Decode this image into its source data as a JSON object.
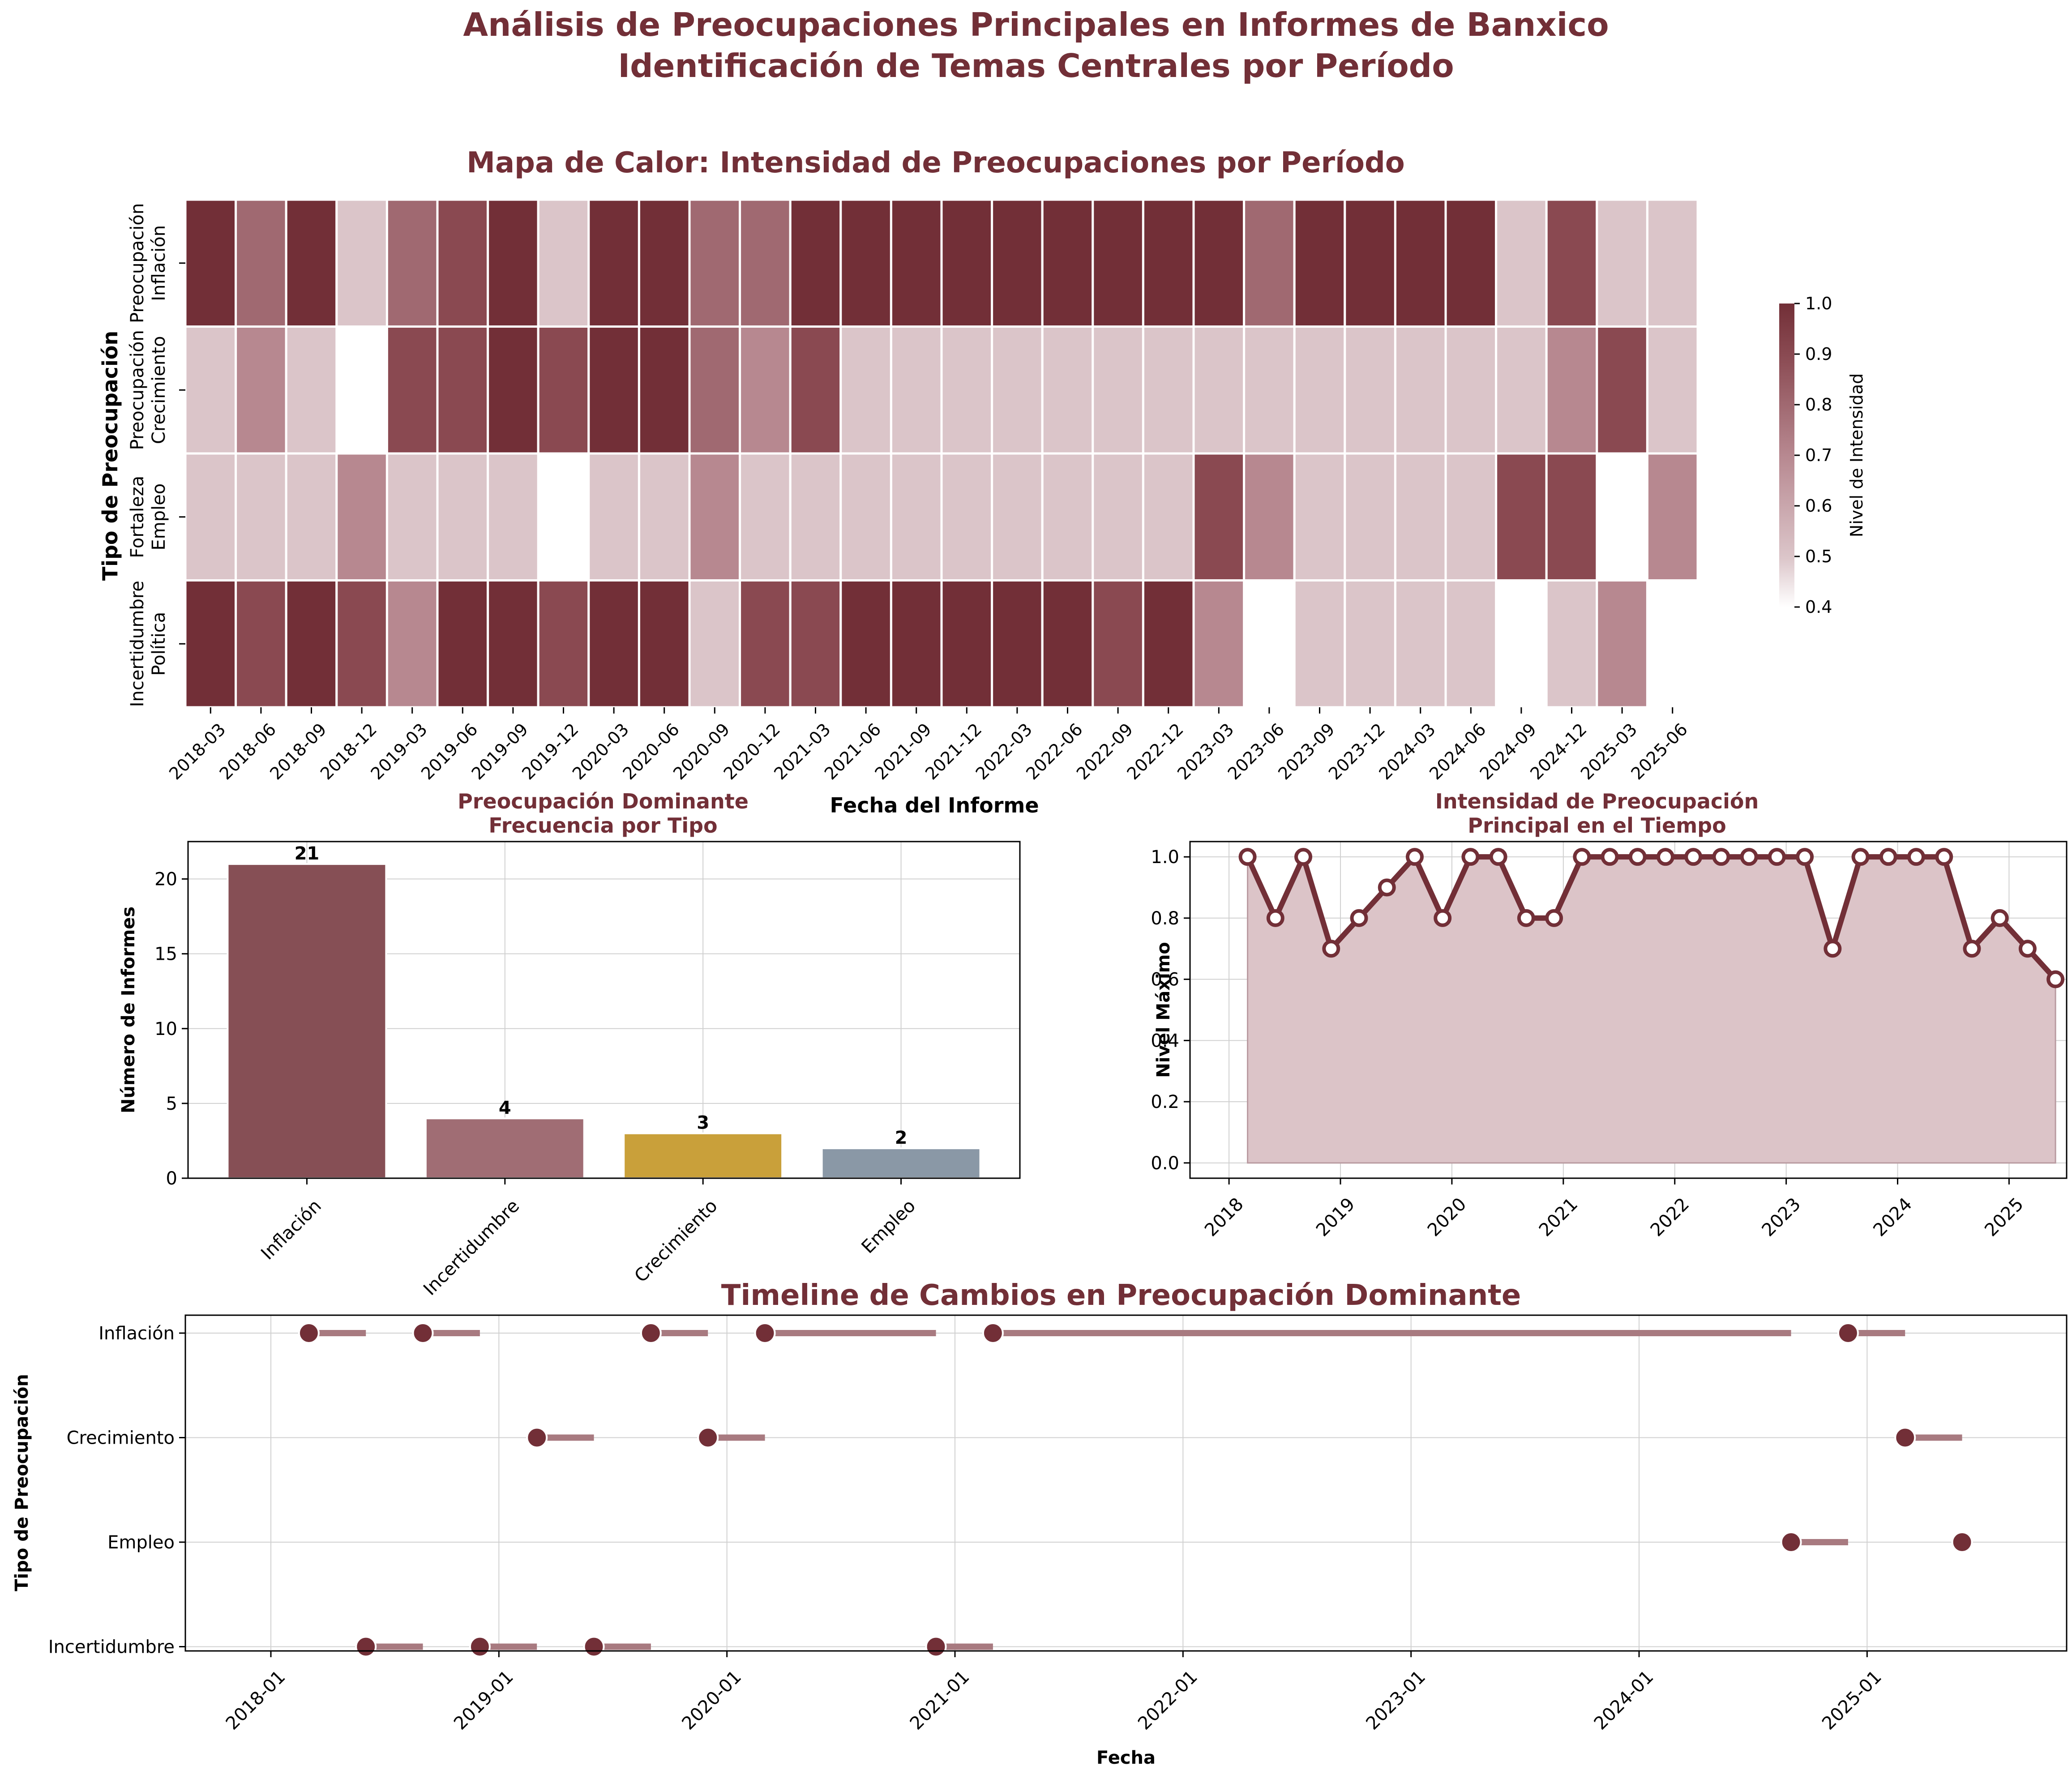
{
  "suptitle": [
    "Análisis de Preocupaciones Principales en Informes de Banxico",
    "Identificación de Temas Centrales por Período"
  ],
  "colors": {
    "accent": "#722f37",
    "accent_light": "#d9c2c6",
    "bar_inflacion": "#864f55",
    "bar_incertidumbre": "#a06d74",
    "bar_crecimiento": "#c9a03a",
    "bar_empleo": "#8a98a6",
    "timeline_bar": "#a87a80",
    "area_fill": "#dcc4c8",
    "grid": "#d0d0d0"
  },
  "chart_data": [
    {
      "type": "heatmap",
      "title": "Mapa de Calor: Intensidad de Preocupaciones por Período",
      "xlabel": "Fecha del Informe",
      "ylabel": "Tipo de Preocupación",
      "rows": [
        [
          "Preocupación",
          "Inflación"
        ],
        [
          "Preocupación",
          "Crecimiento"
        ],
        [
          "Fortaleza",
          "Empleo"
        ],
        [
          "Incertidumbre",
          "Política"
        ]
      ],
      "columns": [
        "2018-03",
        "2018-06",
        "2018-09",
        "2018-12",
        "2019-03",
        "2019-06",
        "2019-09",
        "2019-12",
        "2020-03",
        "2020-06",
        "2020-09",
        "2020-12",
        "2021-03",
        "2021-06",
        "2021-09",
        "2021-12",
        "2022-03",
        "2022-06",
        "2022-09",
        "2022-12",
        "2023-03",
        "2023-06",
        "2023-09",
        "2023-12",
        "2024-03",
        "2024-06",
        "2024-09",
        "2024-12",
        "2025-03",
        "2025-06"
      ],
      "values": [
        [
          1.0,
          0.8,
          1.0,
          0.5,
          0.8,
          0.9,
          1.0,
          0.5,
          1.0,
          1.0,
          0.8,
          0.8,
          1.0,
          1.0,
          1.0,
          1.0,
          1.0,
          1.0,
          1.0,
          1.0,
          1.0,
          0.8,
          1.0,
          1.0,
          1.0,
          1.0,
          0.5,
          0.9,
          0.5,
          0.5
        ],
        [
          0.5,
          0.7,
          0.5,
          null,
          0.9,
          0.9,
          1.0,
          0.9,
          1.0,
          1.0,
          0.8,
          0.7,
          0.9,
          0.5,
          0.5,
          0.5,
          0.5,
          0.5,
          0.5,
          0.5,
          0.5,
          0.5,
          0.5,
          0.5,
          0.5,
          0.5,
          0.5,
          0.7,
          0.9,
          0.5
        ],
        [
          0.5,
          0.5,
          0.5,
          0.7,
          0.5,
          0.5,
          0.5,
          null,
          0.5,
          0.5,
          0.7,
          0.5,
          0.5,
          0.5,
          0.5,
          0.5,
          0.5,
          0.5,
          0.5,
          0.5,
          0.9,
          0.7,
          0.5,
          0.5,
          0.5,
          0.5,
          0.9,
          0.9,
          null,
          0.7
        ],
        [
          1.0,
          0.9,
          1.0,
          0.9,
          0.7,
          1.0,
          1.0,
          0.9,
          1.0,
          1.0,
          0.5,
          0.9,
          0.9,
          1.0,
          1.0,
          1.0,
          1.0,
          1.0,
          0.9,
          1.0,
          0.7,
          null,
          0.5,
          0.5,
          0.5,
          0.5,
          null,
          0.5,
          0.7,
          null
        ]
      ],
      "colorbar": {
        "label": "Nivel de Intensidad",
        "range": [
          0.4,
          1.0
        ],
        "ticks": [
          "0.4",
          "0.5",
          "0.6",
          "0.7",
          "0.8",
          "0.9",
          "1.0"
        ]
      }
    },
    {
      "type": "bar",
      "title": [
        "Preocupación Dominante",
        "Frecuencia por Tipo"
      ],
      "categories": [
        "Inflación",
        "Incertidumbre",
        "Crecimiento",
        "Empleo"
      ],
      "values": [
        21,
        4,
        3,
        2
      ],
      "ylabel": "Número de Informes",
      "ylim": [
        0,
        22.5
      ],
      "yticks": [
        0,
        5,
        10,
        15,
        20
      ],
      "grid": true
    },
    {
      "type": "area",
      "title": [
        "Intensidad de Preocupación",
        "Principal en el Tiempo"
      ],
      "ylabel": "Nivel Máximo",
      "x": [
        "2018-03",
        "2018-06",
        "2018-09",
        "2018-12",
        "2019-03",
        "2019-06",
        "2019-09",
        "2019-12",
        "2020-03",
        "2020-06",
        "2020-09",
        "2020-12",
        "2021-03",
        "2021-06",
        "2021-09",
        "2021-12",
        "2022-03",
        "2022-06",
        "2022-09",
        "2022-12",
        "2023-03",
        "2023-06",
        "2023-09",
        "2023-12",
        "2024-03",
        "2024-06",
        "2024-09",
        "2024-12",
        "2025-03",
        "2025-06"
      ],
      "y": [
        1.0,
        0.8,
        1.0,
        0.7,
        0.8,
        0.9,
        1.0,
        0.8,
        1.0,
        1.0,
        0.8,
        0.8,
        1.0,
        1.0,
        1.0,
        1.0,
        1.0,
        1.0,
        1.0,
        1.0,
        1.0,
        0.7,
        1.0,
        1.0,
        1.0,
        1.0,
        0.7,
        0.8,
        0.7,
        0.6
      ],
      "ylim": [
        -0.05,
        1.05
      ],
      "yticks": [
        "0.0",
        "0.2",
        "0.4",
        "0.6",
        "0.8",
        "1.0"
      ],
      "xticks": [
        "2018",
        "2019",
        "2020",
        "2021",
        "2022",
        "2023",
        "2024",
        "2025"
      ],
      "grid": true
    },
    {
      "type": "scatter",
      "title": "Timeline de Cambios en Preocupación Dominante",
      "xlabel": "Fecha",
      "ylabel": "Tipo de Preocupación",
      "categories": [
        "Inflación",
        "Crecimiento",
        "Empleo",
        "Incertidumbre"
      ],
      "xticks": [
        "2018-01",
        "2019-01",
        "2020-01",
        "2021-01",
        "2022-01",
        "2023-01",
        "2024-01",
        "2025-01"
      ],
      "segments": [
        {
          "category": "Inflación",
          "start": "2018-03",
          "end": "2018-06"
        },
        {
          "category": "Inflación",
          "start": "2018-09",
          "end": "2018-12"
        },
        {
          "category": "Inflación",
          "start": "2019-09",
          "end": "2019-12"
        },
        {
          "category": "Inflación",
          "start": "2020-03",
          "end": "2020-12"
        },
        {
          "category": "Inflación",
          "start": "2021-03",
          "end": "2024-09"
        },
        {
          "category": "Inflación",
          "start": "2024-12",
          "end": "2025-03"
        },
        {
          "category": "Crecimiento",
          "start": "2019-03",
          "end": "2019-06"
        },
        {
          "category": "Crecimiento",
          "start": "2019-12",
          "end": "2020-03"
        },
        {
          "category": "Crecimiento",
          "start": "2025-03",
          "end": "2025-06"
        },
        {
          "category": "Empleo",
          "start": "2024-09",
          "end": "2024-12"
        },
        {
          "category": "Empleo",
          "start": "2025-06",
          "end": null
        },
        {
          "category": "Incertidumbre",
          "start": "2018-06",
          "end": "2018-09"
        },
        {
          "category": "Incertidumbre",
          "start": "2018-12",
          "end": "2019-03"
        },
        {
          "category": "Incertidumbre",
          "start": "2019-06",
          "end": "2019-09"
        },
        {
          "category": "Incertidumbre",
          "start": "2020-12",
          "end": "2021-03"
        }
      ],
      "grid": true
    }
  ]
}
